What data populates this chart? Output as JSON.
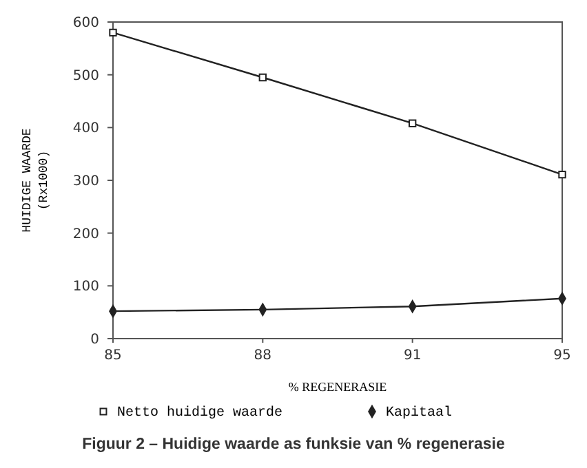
{
  "chart_data": {
    "type": "line",
    "title": "Figuur 2 – Huidige waarde as funksie van % regenerasie",
    "xlabel": "% REGENERASIE",
    "ylabel": "HUIDIGE WAARDE\n(Rx1000)",
    "categories": [
      "85",
      "88",
      "91",
      "95"
    ],
    "series": [
      {
        "name": "Netto huidige waarde",
        "color": "#222222",
        "marker": "square",
        "values": [
          580,
          495,
          408,
          311
        ]
      },
      {
        "name": "Kapitaal",
        "color": "#222222",
        "marker": "diamond",
        "values": [
          52,
          55,
          61,
          76
        ]
      }
    ],
    "ylim": [
      0,
      600
    ],
    "yticks": [
      0,
      100,
      200,
      300,
      400,
      500,
      600
    ],
    "legend": "bottom",
    "grid": false
  }
}
